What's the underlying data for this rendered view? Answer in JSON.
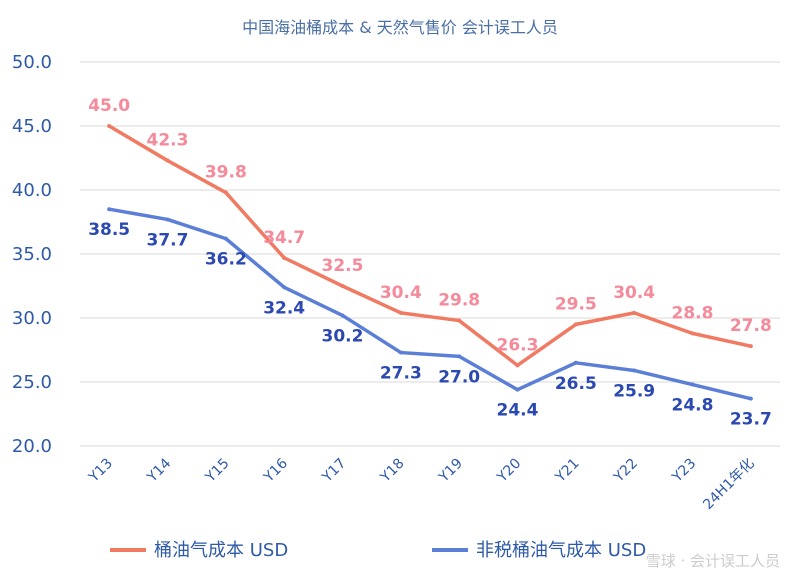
{
  "chart_data": {
    "type": "line",
    "title": "中国海油桶成本 & 天然气售价 会计误工人员",
    "categories": [
      "Y13",
      "Y14",
      "Y15",
      "Y16",
      "Y17",
      "Y18",
      "Y19",
      "Y20",
      "Y21",
      "Y22",
      "Y23",
      "24H1年化"
    ],
    "series": [
      {
        "name": "桶油气成本 USD",
        "color": "#f07a62",
        "label_color": "#f48a9a",
        "values": [
          45.0,
          42.3,
          39.8,
          34.7,
          32.5,
          30.4,
          29.8,
          26.3,
          29.5,
          30.4,
          28.8,
          27.8
        ]
      },
      {
        "name": "非税桶油气成本 USD",
        "color": "#5b7fd6",
        "label_color": "#2b49b0",
        "values": [
          38.5,
          37.7,
          36.2,
          32.4,
          30.2,
          27.3,
          27.0,
          24.4,
          26.5,
          25.9,
          24.8,
          23.7
        ]
      }
    ],
    "yticks": [
      "20.0",
      "25.0",
      "30.0",
      "35.0",
      "40.0",
      "45.0",
      "50.0"
    ],
    "ylim": [
      20,
      50
    ],
    "grid": true,
    "legend_position": "bottom"
  },
  "watermark": "雪球 · 会计误工人员"
}
